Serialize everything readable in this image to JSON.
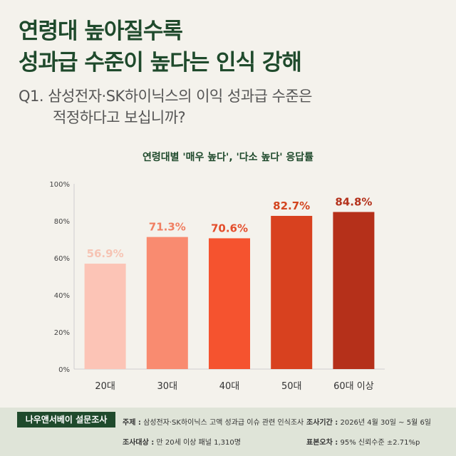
{
  "headline": {
    "line1": "연령대 높아질수록",
    "line2": "성과급 수준이 높다는 인식 강해"
  },
  "question": {
    "line1": "Q1. 삼성전자·SK하이닉스의 이익 성과급 수준은",
    "line2": "적정하다고 보십니까?"
  },
  "colors": {
    "headline": "#1f4a2c",
    "bars": [
      "#fcc4b6",
      "#f98b70",
      "#f5532f",
      "#d8411f",
      "#b5301a"
    ],
    "labels": [
      "#f6c4b4",
      "#f07f62",
      "#e44e2c",
      "#d3451f",
      "#b4321c"
    ],
    "footer_bg": "#dfe4d8"
  },
  "chart_data": {
    "type": "bar",
    "title": "연령대별 '매우 높다', '다소 높다' 응답률",
    "categories": [
      "20대",
      "30대",
      "40대",
      "50대",
      "60대 이상"
    ],
    "values": [
      56.9,
      71.3,
      70.6,
      82.7,
      84.8
    ],
    "value_labels": [
      "56.9%",
      "71.3%",
      "70.6%",
      "82.7%",
      "84.8%"
    ],
    "yticks": [
      "0%",
      "20%",
      "40%",
      "60%",
      "80%",
      "100%"
    ],
    "ylim": [
      0,
      100
    ],
    "grid": false
  },
  "footer": {
    "brand": "나우앤서베이 설문조사",
    "subject_key": "주제 :",
    "subject_val": "삼성전자·SK하이닉스 고액 성과급 이슈 관련 인식조사",
    "period_key": "조사기간 :",
    "period_val": "2026년 4월 30일 ~ 5월 6일",
    "target_key": "조사대상 :",
    "target_val": "만 20세 이상 패널 1,310명",
    "error_key": "표본오차 :",
    "error_val": "95% 신뢰수준 ±2.71%p"
  }
}
